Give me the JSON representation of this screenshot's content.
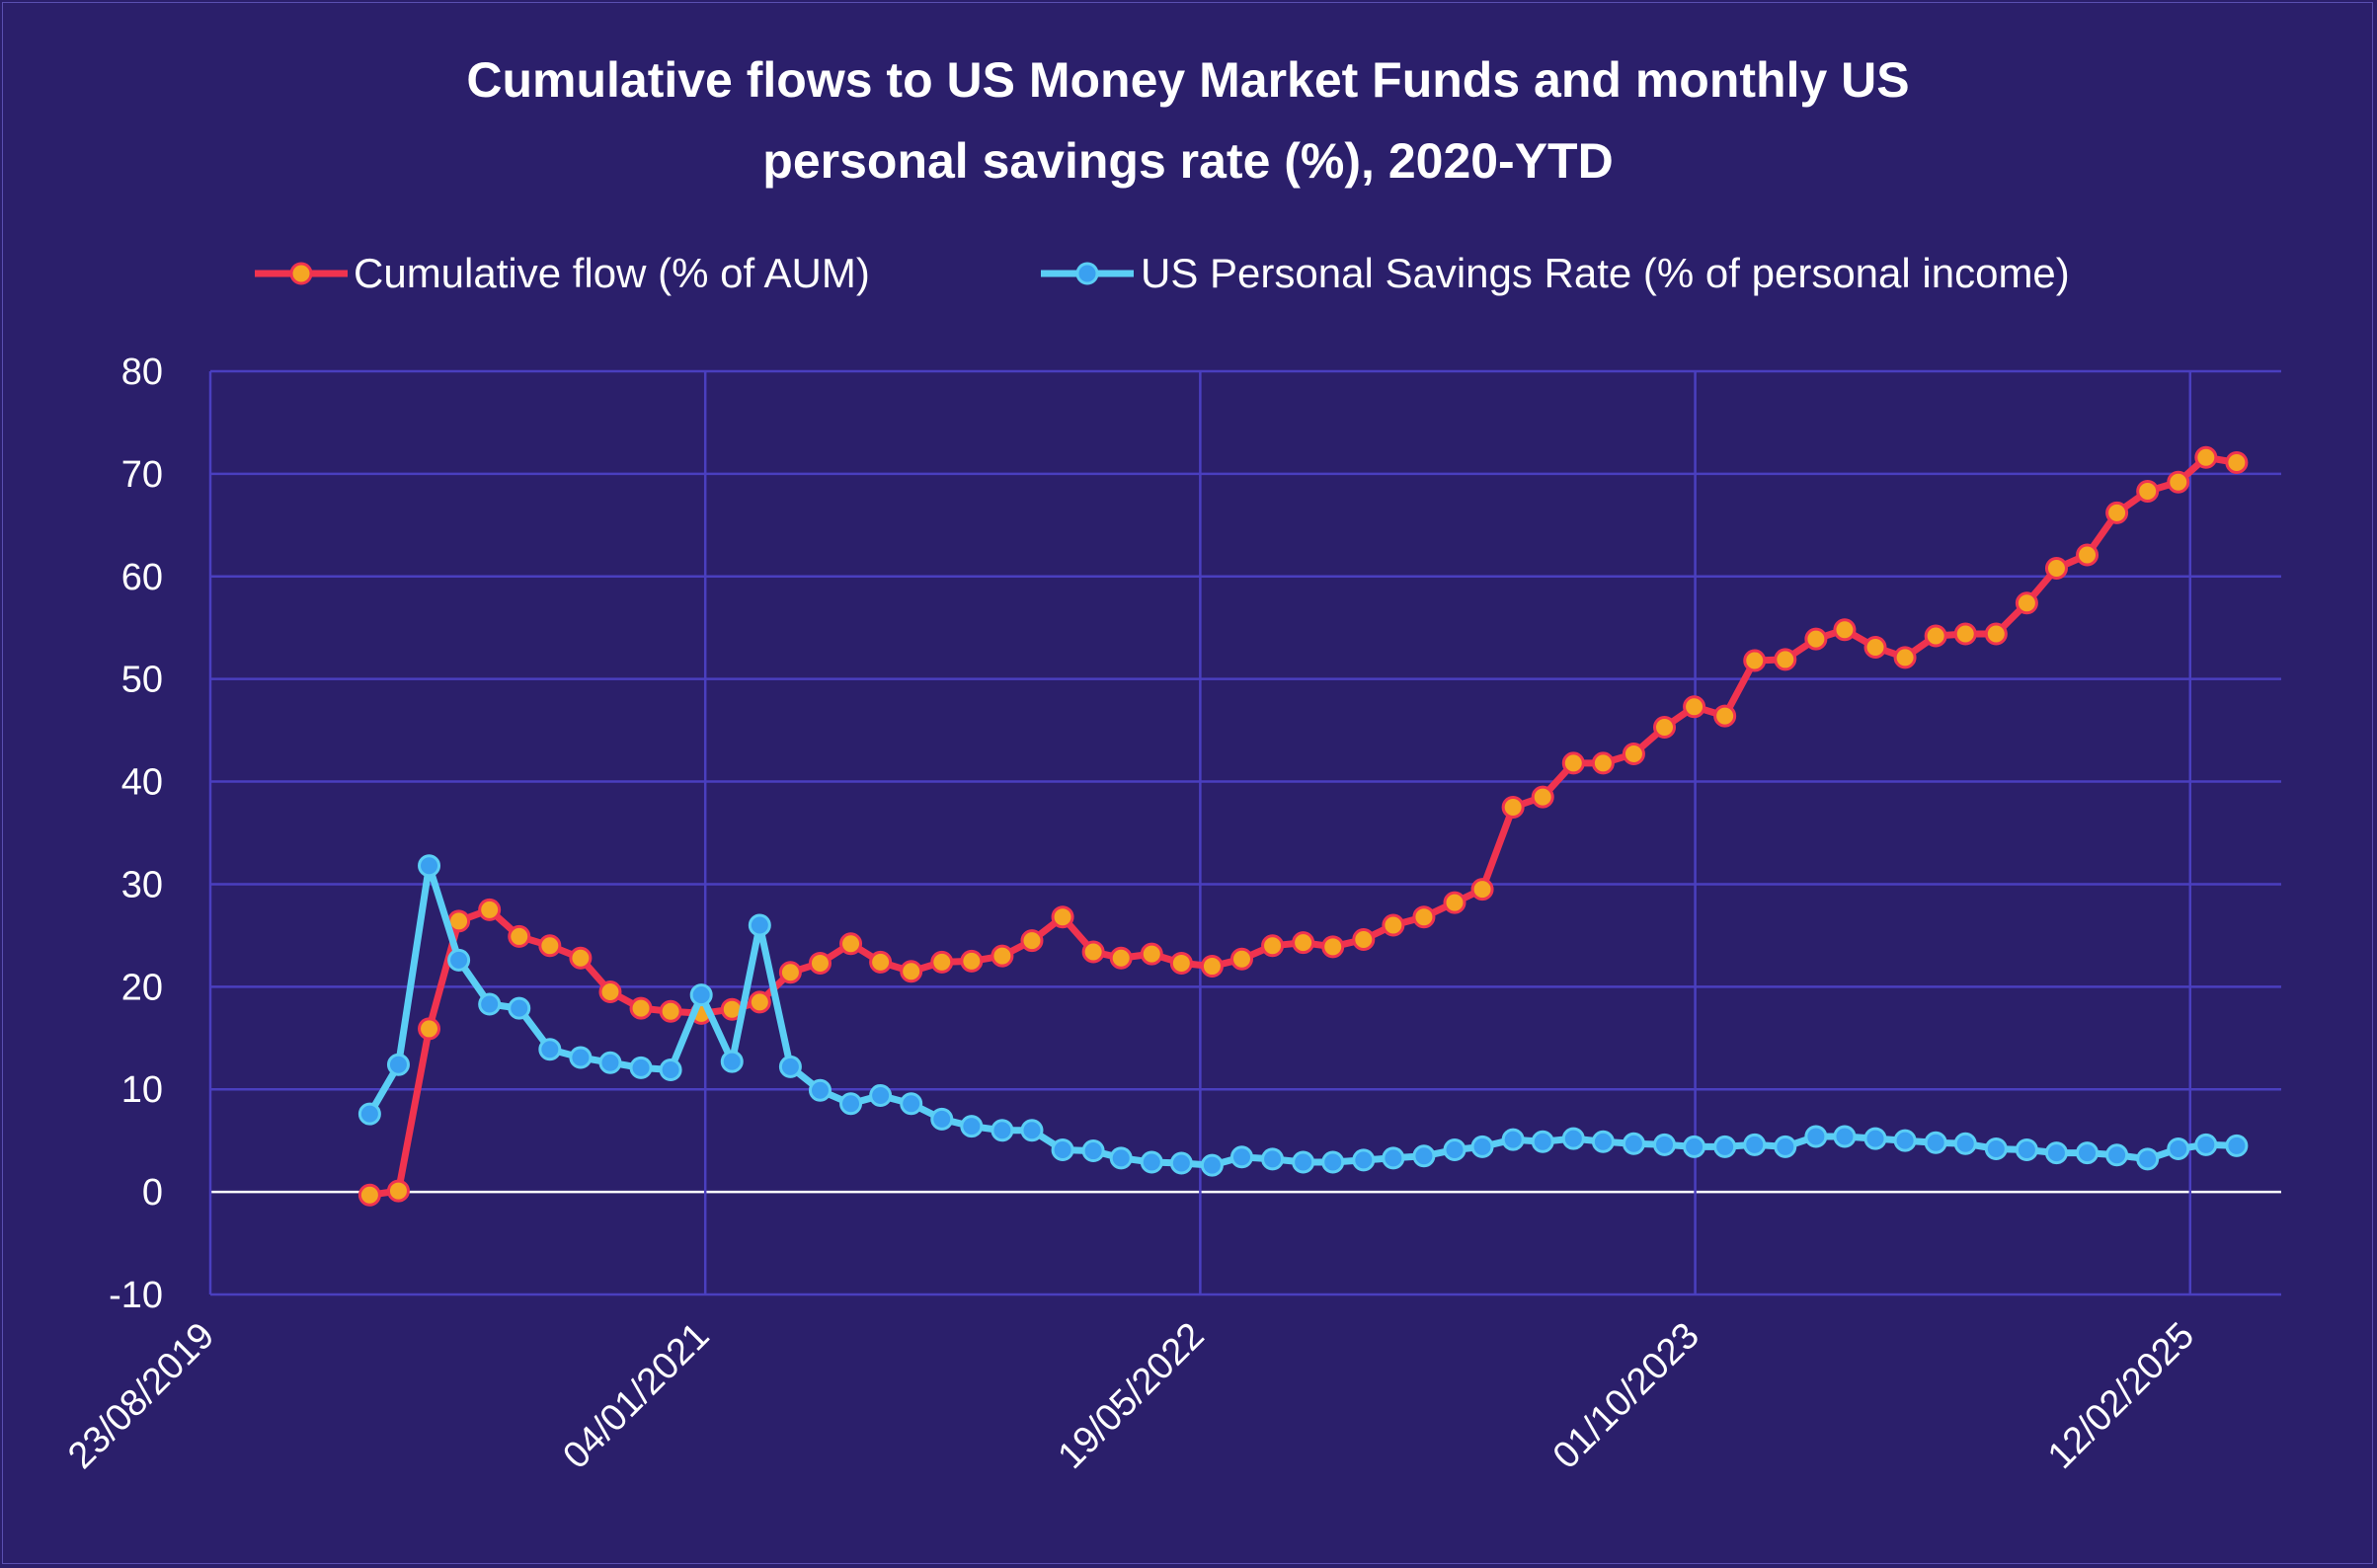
{
  "chart_data": {
    "type": "line",
    "title_lines": [
      "Cumulative flows to US Money Market Funds and monthly US",
      "personal savings rate (%), 2020-YTD"
    ],
    "xlabel": "",
    "ylabel": "",
    "x_axis_type": "date",
    "xlim": [
      "2019-08-23",
      "2025-05-15"
    ],
    "ylim": [
      -10,
      80
    ],
    "y_ticks": [
      -10,
      0,
      10,
      20,
      30,
      40,
      50,
      60,
      70,
      80
    ],
    "x_ticks": [
      {
        "date": "2019-08-23",
        "label": "23/08/2019"
      },
      {
        "date": "2021-01-04",
        "label": "04/01/2021"
      },
      {
        "date": "2022-05-19",
        "label": "19/05/2022"
      },
      {
        "date": "2023-10-01",
        "label": "01/10/2023"
      },
      {
        "date": "2025-02-12",
        "label": "12/02/2025"
      }
    ],
    "grid": true,
    "legend_position": "top",
    "colors": {
      "background": "#2b1f6b",
      "grid": "#4a3fbf",
      "zero_line": "#ffffff",
      "flow_line": "#f0334f",
      "flow_marker": "#f5a623",
      "savings_line": "#5bcef5",
      "savings_marker": "#3aa0f0"
    },
    "x": [
      "2020-01-31",
      "2020-02-29",
      "2020-03-31",
      "2020-04-30",
      "2020-05-31",
      "2020-06-30",
      "2020-07-31",
      "2020-08-31",
      "2020-09-30",
      "2020-10-31",
      "2020-11-30",
      "2020-12-31",
      "2021-01-31",
      "2021-02-28",
      "2021-03-31",
      "2021-04-30",
      "2021-05-31",
      "2021-06-30",
      "2021-07-31",
      "2021-08-31",
      "2021-09-30",
      "2021-10-31",
      "2021-11-30",
      "2021-12-31",
      "2022-01-31",
      "2022-02-28",
      "2022-03-31",
      "2022-04-30",
      "2022-05-31",
      "2022-06-30",
      "2022-07-31",
      "2022-08-31",
      "2022-09-30",
      "2022-10-31",
      "2022-11-30",
      "2022-12-31",
      "2023-01-31",
      "2023-02-28",
      "2023-03-31",
      "2023-04-30",
      "2023-05-31",
      "2023-06-30",
      "2023-07-31",
      "2023-08-31",
      "2023-09-30",
      "2023-10-31",
      "2023-11-30",
      "2023-12-31",
      "2024-01-31",
      "2024-02-29",
      "2024-03-31",
      "2024-04-30",
      "2024-05-31",
      "2024-06-30",
      "2024-07-31",
      "2024-08-31",
      "2024-09-30",
      "2024-10-31",
      "2024-11-30",
      "2024-12-31",
      "2025-01-31",
      "2025-02-28",
      "2025-03-31"
    ],
    "series": [
      {
        "name": "Cumulative flow (% of AUM)",
        "values": [
          -0.3,
          0.1,
          15.9,
          26.4,
          27.5,
          24.9,
          24.0,
          22.8,
          19.5,
          17.9,
          17.6,
          17.4,
          17.8,
          18.5,
          21.4,
          22.3,
          24.2,
          22.4,
          21.5,
          22.4,
          22.5,
          23.0,
          24.5,
          26.8,
          23.4,
          22.8,
          23.2,
          22.3,
          22.0,
          22.7,
          24.0,
          24.3,
          23.9,
          24.6,
          26.0,
          26.8,
          28.2,
          29.5,
          37.5,
          38.5,
          41.8,
          41.8,
          42.7,
          45.3,
          47.3,
          46.4,
          51.8,
          51.9,
          53.9,
          54.8,
          53.1,
          52.1,
          54.2,
          54.4,
          54.4,
          57.4,
          60.8,
          62.1,
          66.2,
          68.3,
          69.2,
          71.6,
          71.1
        ]
      },
      {
        "name": "US Personal Savings Rate (% of personal income)",
        "values": [
          7.6,
          12.4,
          31.8,
          22.6,
          18.3,
          17.9,
          13.9,
          13.1,
          12.6,
          12.1,
          11.9,
          19.2,
          12.7,
          26.0,
          12.2,
          9.9,
          8.6,
          9.4,
          8.6,
          7.1,
          6.4,
          6.0,
          6.0,
          4.1,
          4.0,
          3.3,
          2.9,
          2.8,
          2.6,
          3.4,
          3.2,
          2.9,
          2.9,
          3.1,
          3.3,
          3.5,
          4.1,
          4.4,
          5.1,
          4.9,
          5.2,
          4.9,
          4.7,
          4.6,
          4.4,
          4.4,
          4.6,
          4.4,
          5.4,
          5.4,
          5.2,
          5.0,
          4.8,
          4.7,
          4.2,
          4.1,
          3.8,
          3.8,
          3.6,
          3.2,
          4.2,
          4.6,
          4.5
        ]
      }
    ]
  }
}
